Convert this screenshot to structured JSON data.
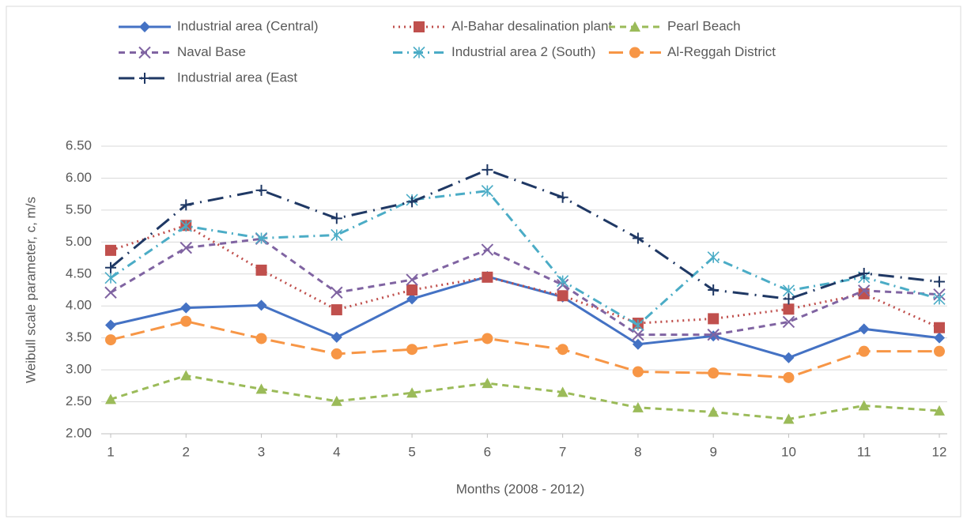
{
  "chart_data": {
    "type": "line",
    "x_label": "Months (2008 - 2012)",
    "y_label": "Weibull scale parameter, c, m/s",
    "x": [
      1,
      2,
      3,
      4,
      5,
      6,
      7,
      8,
      9,
      10,
      11,
      12
    ],
    "xlim": [
      1,
      12
    ],
    "xticks": [
      1,
      2,
      3,
      4,
      5,
      6,
      7,
      8,
      9,
      10,
      11,
      12
    ],
    "ylim": [
      2,
      6.5
    ],
    "yticks": [
      {
        "value": 2,
        "label": "2.00"
      },
      {
        "value": 2.5,
        "label": "2.50"
      },
      {
        "value": 3,
        "label": "3.00"
      },
      {
        "value": 3.5,
        "label": "3.50"
      },
      {
        "value": 4,
        "label": "4.00"
      },
      {
        "value": 4.5,
        "label": "4.50"
      },
      {
        "value": 5,
        "label": "5.00"
      },
      {
        "value": 5.5,
        "label": "5.50"
      },
      {
        "value": 6,
        "label": "6.00"
      },
      {
        "value": 6.5,
        "label": "6.50"
      }
    ],
    "grid": true,
    "legend": "top",
    "series": [
      {
        "name": "Industrial area (Central)",
        "color": "#4472c4",
        "marker": "diamond",
        "dash": "solid",
        "values": [
          3.7,
          3.97,
          4.01,
          3.51,
          4.11,
          4.46,
          4.14,
          3.4,
          3.53,
          3.19,
          3.64,
          3.5
        ]
      },
      {
        "name": "Al-Bahar desalination plant",
        "color": "#c0504d",
        "marker": "square",
        "dash": "dot",
        "values": [
          4.87,
          5.26,
          4.56,
          3.94,
          4.25,
          4.45,
          4.16,
          3.73,
          3.8,
          3.95,
          4.19,
          3.66
        ]
      },
      {
        "name": "Pearl Beach",
        "color": "#9bbb59",
        "marker": "triangle",
        "dash": "dash",
        "values": [
          2.54,
          2.91,
          2.7,
          2.51,
          2.64,
          2.79,
          2.65,
          2.41,
          2.34,
          2.23,
          2.44,
          2.36
        ]
      },
      {
        "name": "Naval Base",
        "color": "#8064a2",
        "marker": "x",
        "dash": "dash",
        "values": [
          4.21,
          4.91,
          5.05,
          4.21,
          4.41,
          4.88,
          4.33,
          3.55,
          3.55,
          3.75,
          4.24,
          4.18
        ]
      },
      {
        "name": "Industrial area 2 (South)",
        "color": "#4bacc6",
        "marker": "star",
        "dash": "dashdot",
        "values": [
          4.44,
          5.25,
          5.06,
          5.11,
          5.66,
          5.8,
          4.39,
          3.7,
          4.76,
          4.24,
          4.45,
          4.11
        ]
      },
      {
        "name": "Al-Reggah District",
        "color": "#f79646",
        "marker": "circle",
        "dash": "longdash",
        "values": [
          3.47,
          3.76,
          3.49,
          3.25,
          3.32,
          3.49,
          3.32,
          2.97,
          2.95,
          2.88,
          3.29,
          3.29
        ]
      },
      {
        "name": "Industrial area (East",
        "color": "#1f3864",
        "marker": "plus",
        "dash": "longdashdot",
        "values": [
          4.6,
          5.58,
          5.81,
          5.37,
          5.63,
          6.13,
          5.7,
          5.06,
          4.25,
          4.11,
          4.51,
          4.38
        ]
      }
    ]
  }
}
